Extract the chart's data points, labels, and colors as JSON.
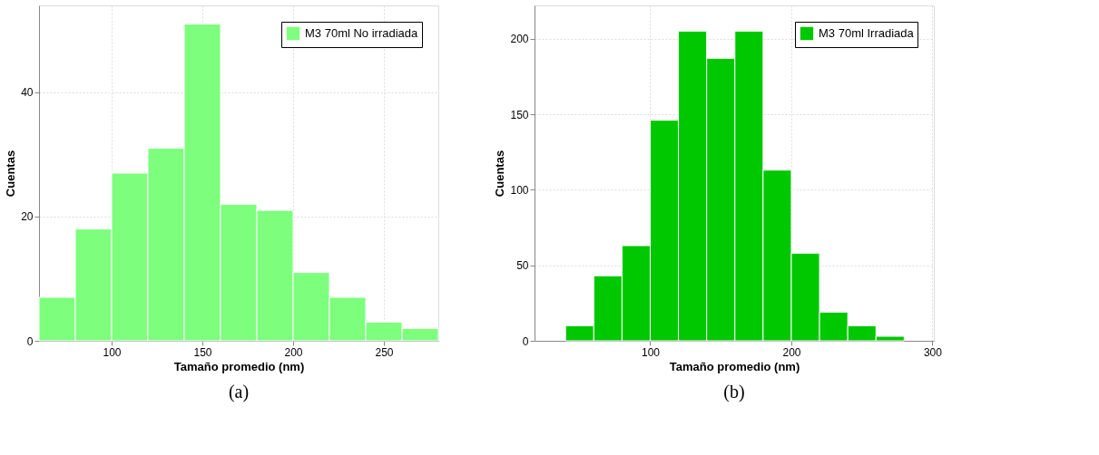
{
  "chart_data": [
    {
      "type": "histogram",
      "xlabel": "Tamaño promedio (nm)",
      "ylabel": "Cuentas",
      "bins": [
        60,
        80,
        100,
        120,
        140,
        160,
        180,
        200,
        220,
        240,
        260,
        280
      ],
      "series": [
        {
          "name": "M3 70ml No irradiada",
          "color": "#7dff7d",
          "values": [
            7,
            18,
            27,
            31,
            51,
            22,
            21,
            11,
            7,
            3,
            2
          ]
        }
      ],
      "xlim": [
        60,
        280
      ],
      "ylim": [
        0,
        54
      ],
      "xticks": [
        100,
        150,
        200,
        250
      ],
      "yticks": [
        0,
        20,
        40
      ],
      "grid": true,
      "legend": "top right",
      "annotations": [
        "(a)"
      ]
    },
    {
      "type": "histogram",
      "xlabel": "Tamaño promedio (nm)",
      "ylabel": "Cuentas",
      "bins": [
        40,
        60,
        80,
        100,
        120,
        140,
        160,
        180,
        200,
        220,
        240,
        260,
        280
      ],
      "series": [
        {
          "name": "M3 70ml Irradiada",
          "color": "#00c800",
          "values": [
            10,
            43,
            63,
            146,
            205,
            187,
            205,
            113,
            58,
            19,
            10,
            3
          ]
        }
      ],
      "xlim": [
        18,
        301
      ],
      "ylim": [
        0,
        222
      ],
      "xticks": [
        100,
        200,
        300
      ],
      "yticks": [
        0,
        50,
        100,
        150,
        200
      ],
      "grid": true,
      "legend": "top right",
      "annotations": [
        "(b)"
      ]
    }
  ]
}
